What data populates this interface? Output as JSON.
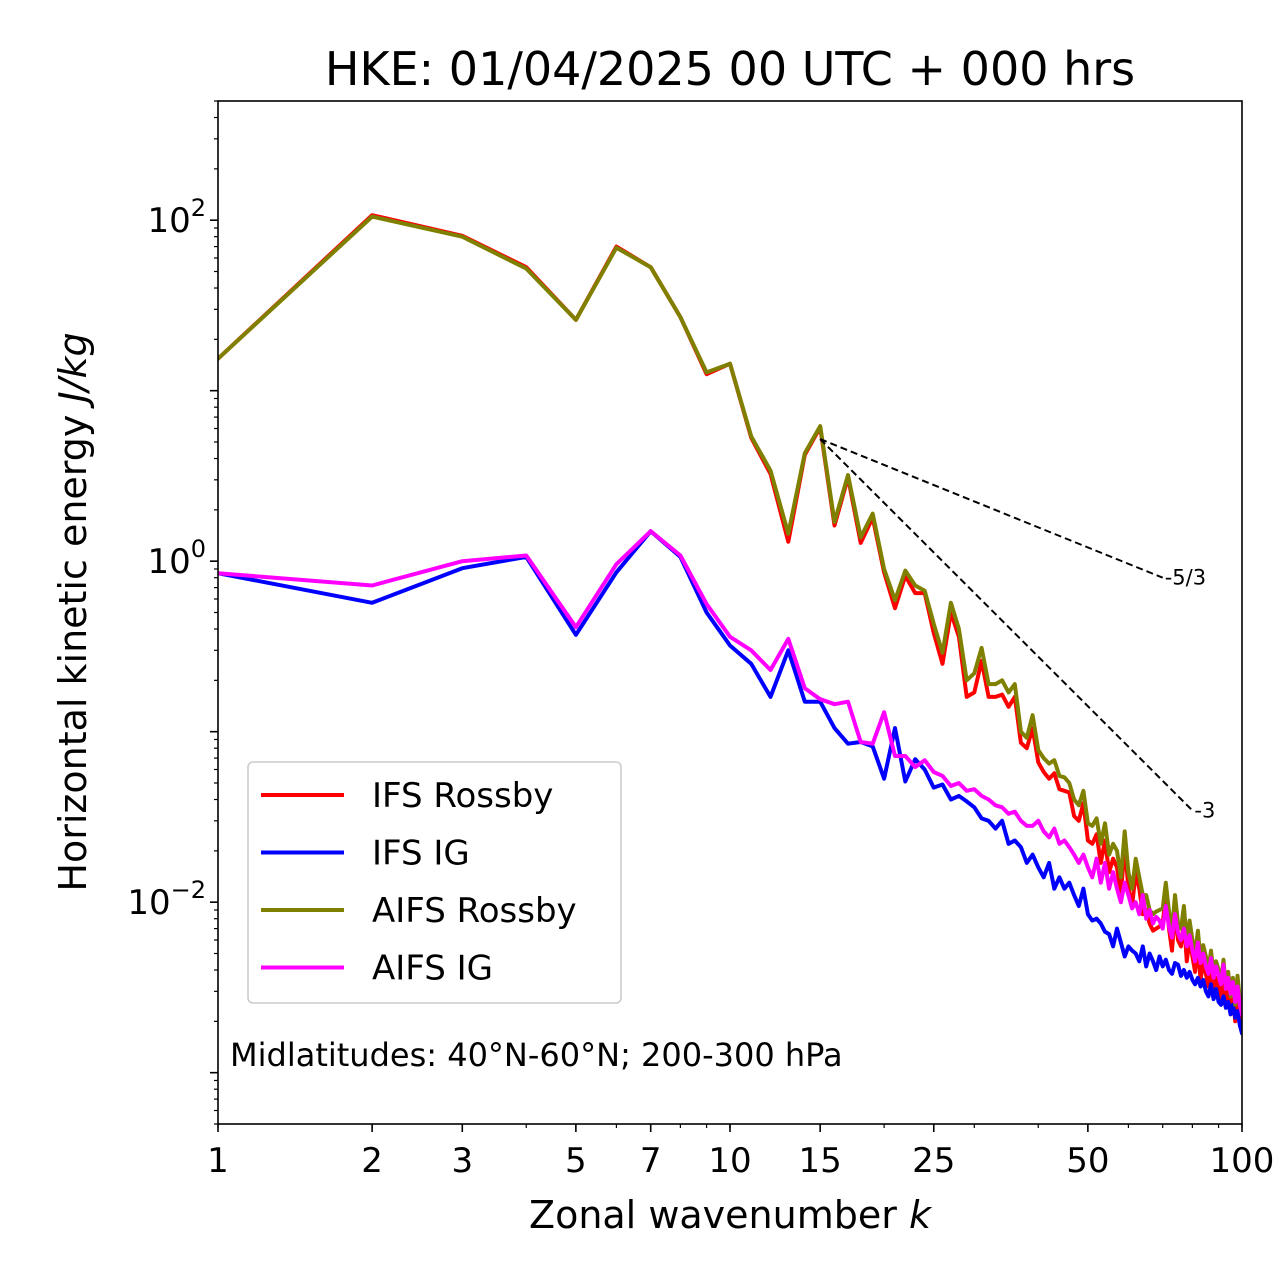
{
  "chart_data": {
    "type": "line",
    "title": "HKE: 01/04/2025 00 UTC + 000 hrs",
    "xlabel_text": "Zonal wavenumber ",
    "xlabel_var": "k",
    "ylabel_text": "Horizontal kinetic energy ",
    "ylabel_var": "J/kg",
    "x_scale": "log",
    "y_scale": "log",
    "xlim": [
      1,
      100
    ],
    "ylim": [
      0.0005,
      500
    ],
    "x_ticks": [
      1,
      2,
      3,
      5,
      7,
      10,
      15,
      25,
      50,
      100
    ],
    "x_tick_labels": [
      "1",
      "2",
      "3",
      "5",
      "7",
      "10",
      "15",
      "25",
      "50",
      "100"
    ],
    "y_ticks": [
      0.01,
      1,
      100
    ],
    "y_tick_labels": [
      {
        "base": "10",
        "exp": "−2"
      },
      {
        "base": "10",
        "exp": "0"
      },
      {
        "base": "10",
        "exp": "2"
      }
    ],
    "annotation": "Midlatitudes: 40°N-60°N; 200-300 hPa",
    "legend_position": "lower-left",
    "x": [
      1,
      2,
      3,
      4,
      5,
      6,
      7,
      8,
      9,
      10,
      11,
      12,
      13,
      14,
      15,
      16,
      17,
      18,
      19,
      20,
      21,
      22,
      23,
      24,
      25,
      26,
      27,
      28,
      29,
      30,
      31,
      32,
      33,
      34,
      35,
      36,
      37,
      38,
      39,
      40,
      41,
      42,
      43,
      44,
      45,
      46,
      47,
      48,
      49,
      50,
      51,
      52,
      53,
      54,
      55,
      56,
      57,
      58,
      59,
      60,
      61,
      62,
      63,
      64,
      65,
      66,
      67,
      68,
      69,
      70,
      71,
      72,
      73,
      74,
      75,
      76,
      77,
      78,
      79,
      80,
      81,
      82,
      83,
      84,
      85,
      86,
      87,
      88,
      89,
      90,
      91,
      92,
      93,
      94,
      95,
      96,
      97,
      98,
      99,
      100
    ],
    "series": [
      {
        "name": "IFS Rossby",
        "color": "#ff0000",
        "values": [
          15.4,
          107,
          81,
          53,
          26,
          70,
          53,
          27,
          12.5,
          14.4,
          5.3,
          3.25,
          1.3,
          4.2,
          6.1,
          1.62,
          3.1,
          1.28,
          1.8,
          0.86,
          0.53,
          0.82,
          0.65,
          0.65,
          0.38,
          0.25,
          0.5,
          0.36,
          0.16,
          0.17,
          0.26,
          0.16,
          0.16,
          0.165,
          0.14,
          0.16,
          0.086,
          0.08,
          0.105,
          0.066,
          0.058,
          0.053,
          0.057,
          0.046,
          0.045,
          0.044,
          0.032,
          0.03,
          0.038,
          0.023,
          0.022,
          0.025,
          0.017,
          0.023,
          0.015,
          0.018,
          0.016,
          0.011,
          0.022,
          0.012,
          0.0095,
          0.015,
          0.012,
          0.0085,
          0.009,
          0.0075,
          0.0068,
          0.007,
          0.0072,
          0.0075,
          0.011,
          0.007,
          0.0052,
          0.009,
          0.006,
          0.0055,
          0.0078,
          0.0045,
          0.0062,
          0.0048,
          0.0039,
          0.0055,
          0.0035,
          0.0045,
          0.0038,
          0.0032,
          0.0042,
          0.003,
          0.0036,
          0.0032,
          0.0027,
          0.0038,
          0.0025,
          0.0032,
          0.0022,
          0.003,
          0.002,
          0.003,
          0.0022,
          0.0018
        ]
      },
      {
        "name": "IFS IG",
        "color": "#0000ff",
        "values": [
          0.85,
          0.57,
          0.91,
          1.06,
          0.37,
          0.86,
          1.5,
          1.06,
          0.5,
          0.32,
          0.25,
          0.16,
          0.3,
          0.15,
          0.15,
          0.105,
          0.085,
          0.087,
          0.082,
          0.053,
          0.105,
          0.051,
          0.069,
          0.06,
          0.047,
          0.049,
          0.04,
          0.042,
          0.039,
          0.036,
          0.031,
          0.03,
          0.027,
          0.03,
          0.022,
          0.023,
          0.021,
          0.017,
          0.019,
          0.016,
          0.014,
          0.017,
          0.012,
          0.014,
          0.012,
          0.013,
          0.011,
          0.0095,
          0.012,
          0.0085,
          0.0078,
          0.008,
          0.0075,
          0.0067,
          0.0065,
          0.0055,
          0.007,
          0.0058,
          0.0048,
          0.0055,
          0.0052,
          0.005,
          0.0045,
          0.0055,
          0.0042,
          0.005,
          0.0045,
          0.004,
          0.0048,
          0.0042,
          0.0046,
          0.004,
          0.0038,
          0.0044,
          0.0043,
          0.0037,
          0.004,
          0.0036,
          0.0039,
          0.0035,
          0.0033,
          0.0036,
          0.0032,
          0.0035,
          0.003,
          0.0028,
          0.0033,
          0.0027,
          0.0031,
          0.0026,
          0.0025,
          0.0028,
          0.0024,
          0.0026,
          0.0022,
          0.0025,
          0.0021,
          0.0023,
          0.0019,
          0.0017
        ]
      },
      {
        "name": "AIFS Rossby",
        "color": "#808000",
        "values": [
          15.4,
          105,
          80,
          52,
          26,
          69,
          53,
          27,
          12.8,
          14.4,
          5.4,
          3.4,
          1.45,
          4.3,
          6.2,
          1.7,
          3.2,
          1.38,
          1.9,
          0.9,
          0.59,
          0.88,
          0.72,
          0.67,
          0.43,
          0.29,
          0.57,
          0.4,
          0.2,
          0.22,
          0.31,
          0.19,
          0.19,
          0.2,
          0.17,
          0.19,
          0.1,
          0.092,
          0.125,
          0.078,
          0.07,
          0.065,
          0.068,
          0.055,
          0.054,
          0.05,
          0.04,
          0.037,
          0.045,
          0.029,
          0.028,
          0.031,
          0.022,
          0.029,
          0.019,
          0.022,
          0.02,
          0.014,
          0.026,
          0.015,
          0.012,
          0.018,
          0.014,
          0.011,
          0.011,
          0.009,
          0.0085,
          0.0088,
          0.009,
          0.0092,
          0.013,
          0.0088,
          0.0068,
          0.011,
          0.0075,
          0.007,
          0.0095,
          0.0058,
          0.0078,
          0.006,
          0.005,
          0.0068,
          0.0045,
          0.0056,
          0.0048,
          0.004,
          0.0052,
          0.0038,
          0.0045,
          0.004,
          0.0034,
          0.0046,
          0.0031,
          0.0039,
          0.0028,
          0.0036,
          0.0025,
          0.0037,
          0.0027,
          0.0023
        ]
      },
      {
        "name": "AIFS IG",
        "color": "#ff00ff",
        "values": [
          0.85,
          0.72,
          1.0,
          1.08,
          0.41,
          0.96,
          1.5,
          1.08,
          0.56,
          0.36,
          0.3,
          0.23,
          0.35,
          0.18,
          0.155,
          0.145,
          0.15,
          0.087,
          0.085,
          0.13,
          0.072,
          0.072,
          0.062,
          0.068,
          0.058,
          0.055,
          0.048,
          0.05,
          0.045,
          0.046,
          0.042,
          0.04,
          0.037,
          0.036,
          0.033,
          0.034,
          0.03,
          0.028,
          0.028,
          0.03,
          0.026,
          0.024,
          0.027,
          0.022,
          0.023,
          0.021,
          0.019,
          0.017,
          0.019,
          0.016,
          0.014,
          0.018,
          0.013,
          0.017,
          0.012,
          0.015,
          0.012,
          0.01,
          0.013,
          0.011,
          0.0092,
          0.01,
          0.0085,
          0.011,
          0.008,
          0.009,
          0.0075,
          0.0082,
          0.0078,
          0.007,
          0.0095,
          0.0072,
          0.0062,
          0.0085,
          0.0066,
          0.006,
          0.007,
          0.0055,
          0.0064,
          0.0052,
          0.0045,
          0.0058,
          0.0044,
          0.005,
          0.0042,
          0.0038,
          0.0047,
          0.0036,
          0.0042,
          0.0037,
          0.0033,
          0.0043,
          0.0031,
          0.0036,
          0.0029,
          0.0034,
          0.0026,
          0.0032,
          0.0025,
          0.0022
        ]
      }
    ],
    "reference_lines": [
      {
        "label": "-5/3",
        "x": [
          15,
          70
        ],
        "y": [
          5.2,
          0.8
        ]
      },
      {
        "label": "-3",
        "x": [
          15,
          80
        ],
        "y": [
          5.2,
          0.0345
        ]
      }
    ]
  }
}
